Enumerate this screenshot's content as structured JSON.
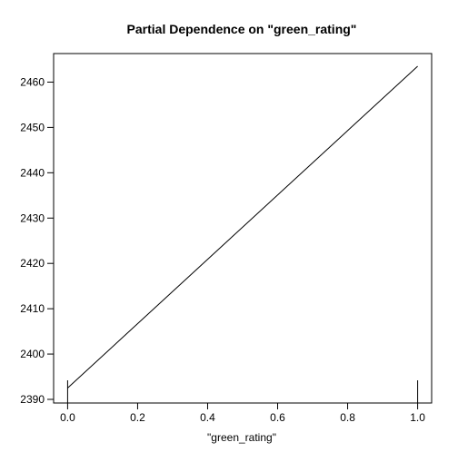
{
  "chart_data": {
    "type": "line",
    "title": "Partial Dependence on \"green_rating\"",
    "xlabel": "\"green_rating\"",
    "ylabel": "",
    "x": [
      0.0,
      1.0
    ],
    "y": [
      2392.5,
      2463.5
    ],
    "xlim": [
      -0.04,
      1.04
    ],
    "ylim": [
      2389.2,
      2466.3
    ],
    "xticks": [
      0.0,
      0.2,
      0.4,
      0.6,
      0.8,
      1.0
    ],
    "xtick_labels": [
      "0.0",
      "0.2",
      "0.4",
      "0.6",
      "0.8",
      "1.0"
    ],
    "yticks": [
      2390,
      2400,
      2410,
      2420,
      2430,
      2440,
      2450,
      2460
    ],
    "ytick_labels": [
      "2390",
      "2400",
      "2410",
      "2420",
      "2430",
      "2440",
      "2450",
      "2460"
    ],
    "rug": [
      0.0,
      1.0
    ],
    "grid": false,
    "line_color": "#000000"
  }
}
